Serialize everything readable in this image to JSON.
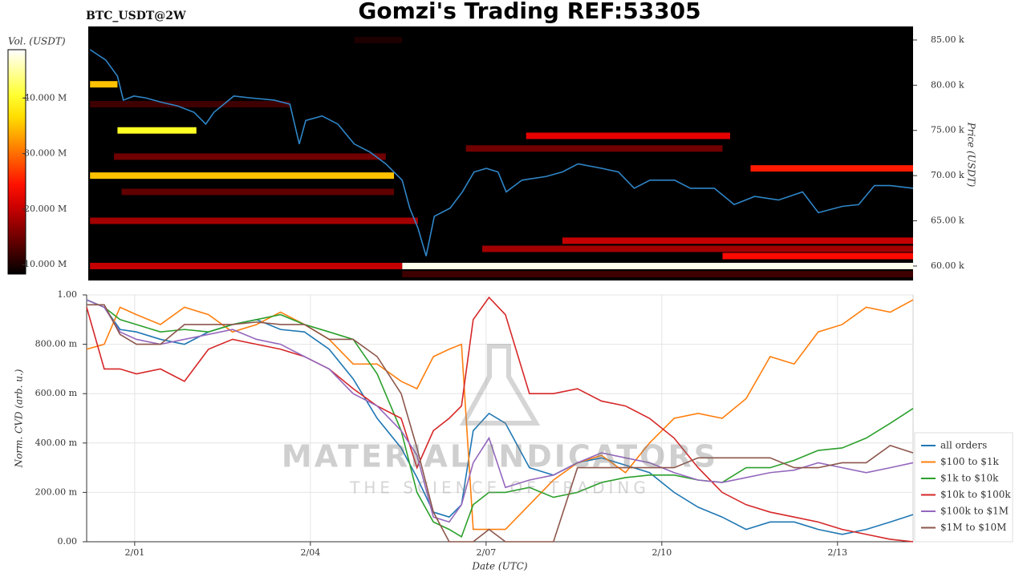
{
  "chart_data": [
    {
      "type": "heatmap",
      "title": "Gomzi's Trading REF:53305",
      "subtitle": "BTC_USDT@2W",
      "ylabel": "Price (USDT)",
      "xlim": [
        0.18,
        14.29
      ],
      "ylim": [
        58.4,
        86.5
      ],
      "yticks": [
        {
          "value": 60,
          "label": "60.00 k"
        },
        {
          "value": 65,
          "label": "65.00 k"
        },
        {
          "value": 70,
          "label": "70.00 k"
        },
        {
          "value": 75,
          "label": "75.00 k"
        },
        {
          "value": 80,
          "label": "80.00 k"
        },
        {
          "value": 85,
          "label": "85.00 k"
        }
      ],
      "x": [
        0.21,
        0.48,
        0.68,
        0.78,
        0.96,
        1.16,
        1.44,
        1.71,
        1.99,
        2.19,
        2.33,
        2.67,
        2.95,
        3.36,
        3.63,
        3.79,
        3.9,
        4.18,
        4.45,
        4.73,
        5.0,
        5.27,
        5.55,
        5.68,
        5.82,
        5.96,
        6.1,
        6.37,
        6.58,
        6.78,
        6.99,
        7.19,
        7.33,
        7.6,
        8.01,
        8.29,
        8.56,
        8.97,
        9.25,
        9.52,
        9.79,
        10.21,
        10.48,
        10.89,
        11.23,
        11.58,
        11.99,
        12.4,
        12.67,
        13.08,
        13.36,
        13.63,
        13.9,
        14.29
      ],
      "line": {
        "color": "#2f86c8",
        "values": [
          83.94,
          82.78,
          81.0,
          78.35,
          78.8,
          78.6,
          78.1,
          77.7,
          77.0,
          75.7,
          77.0,
          78.8,
          78.6,
          78.35,
          77.9,
          73.5,
          76.1,
          76.6,
          75.7,
          73.5,
          72.6,
          71.3,
          69.5,
          66.4,
          64.2,
          61.1,
          65.5,
          66.4,
          68.2,
          70.4,
          70.8,
          70.4,
          68.2,
          69.5,
          69.9,
          70.4,
          71.3,
          70.8,
          70.4,
          68.6,
          69.5,
          69.5,
          68.6,
          68.6,
          66.8,
          67.7,
          67.3,
          68.2,
          65.9,
          66.6,
          66.8,
          68.9,
          68.9,
          68.6
        ]
      },
      "bands": [
        {
          "price": 60.0,
          "from": 5.55,
          "to": 14.29,
          "volume": 48
        },
        {
          "price": 60.0,
          "from": 0.21,
          "to": 5.55,
          "volume": 20
        },
        {
          "price": 75.0,
          "from": 0.68,
          "to": 2.03,
          "volume": 40
        },
        {
          "price": 70.0,
          "from": 0.21,
          "to": 5.41,
          "volume": 35
        },
        {
          "price": 80.1,
          "from": 0.21,
          "to": 0.68,
          "volume": 35
        },
        {
          "price": 74.4,
          "from": 7.67,
          "to": 11.16,
          "volume": 22
        },
        {
          "price": 70.8,
          "from": 11.51,
          "to": 14.29,
          "volume": 25
        },
        {
          "price": 62.8,
          "from": 8.29,
          "to": 14.29,
          "volume": 20
        },
        {
          "price": 61.9,
          "from": 6.92,
          "to": 14.29,
          "volume": 18
        },
        {
          "price": 61.1,
          "from": 11.03,
          "to": 14.29,
          "volume": 24
        },
        {
          "price": 65.0,
          "from": 0.21,
          "to": 5.82,
          "volume": 18
        },
        {
          "price": 72.1,
          "from": 0.62,
          "to": 5.27,
          "volume": 15
        },
        {
          "price": 68.2,
          "from": 0.75,
          "to": 5.41,
          "volume": 14
        },
        {
          "price": 73.0,
          "from": 6.64,
          "to": 11.03,
          "volume": 15
        },
        {
          "price": 77.9,
          "from": 0.21,
          "to": 3.63,
          "volume": 12
        },
        {
          "price": 85.0,
          "from": 4.73,
          "to": 5.55,
          "volume": 10
        },
        {
          "price": 59.1,
          "from": 5.55,
          "to": 14.29,
          "volume": 12
        }
      ],
      "colorbar": {
        "label": "Vol. (USDT)",
        "lim": [
          8.3,
          48.7
        ],
        "ticks": [
          {
            "value": 10,
            "label": "10.000 M"
          },
          {
            "value": 20,
            "label": "20.000 M"
          },
          {
            "value": 30,
            "label": "30.000 M"
          },
          {
            "value": 40,
            "label": "40.000 M"
          }
        ]
      }
    },
    {
      "type": "line",
      "xlabel": "Date (UTC)",
      "ylabel": "Norm. CVD (arb. u.)",
      "grid": true,
      "legend": "right",
      "annotations": [
        "MATERIAL INDICATORS",
        "THE SCIENCE OF TRADING"
      ],
      "xlim": [
        0.18,
        14.29
      ],
      "ylim": [
        0,
        1
      ],
      "xticks": [
        {
          "value": 1,
          "label": "2/01"
        },
        {
          "value": 4,
          "label": "2/04"
        },
        {
          "value": 7,
          "label": "2/07"
        },
        {
          "value": 10,
          "label": "2/10"
        },
        {
          "value": 13,
          "label": "2/13"
        }
      ],
      "yticks": [
        {
          "value": 0,
          "label": "0.00"
        },
        {
          "value": 0.2,
          "label": "200.00 m"
        },
        {
          "value": 0.4,
          "label": "400.00 m"
        },
        {
          "value": 0.6,
          "label": "600.00 m"
        },
        {
          "value": 0.8,
          "label": "800.00 m"
        },
        {
          "value": 1,
          "label": "1.00"
        }
      ],
      "x": [
        0.18,
        0.48,
        0.75,
        1.03,
        1.44,
        1.85,
        2.26,
        2.67,
        3.08,
        3.49,
        3.9,
        4.32,
        4.73,
        5.14,
        5.55,
        5.82,
        6.1,
        6.37,
        6.58,
        6.78,
        7.05,
        7.33,
        7.74,
        8.15,
        8.56,
        8.97,
        9.38,
        9.79,
        10.21,
        10.62,
        11.03,
        11.44,
        11.85,
        12.26,
        12.67,
        13.08,
        13.49,
        13.9,
        14.29
      ],
      "series": [
        {
          "name": "all orders",
          "color": "#1f77b4",
          "values": [
            0.98,
            0.95,
            0.86,
            0.85,
            0.82,
            0.8,
            0.85,
            0.88,
            0.9,
            0.86,
            0.85,
            0.78,
            0.66,
            0.5,
            0.38,
            0.26,
            0.12,
            0.1,
            0.15,
            0.45,
            0.52,
            0.48,
            0.3,
            0.27,
            0.32,
            0.34,
            0.31,
            0.28,
            0.2,
            0.14,
            0.1,
            0.05,
            0.08,
            0.08,
            0.05,
            0.03,
            0.05,
            0.08,
            0.11
          ]
        },
        {
          "name": "$100 to $1k",
          "color": "#ff7f0e",
          "values": [
            0.78,
            0.8,
            0.95,
            0.92,
            0.88,
            0.95,
            0.92,
            0.85,
            0.88,
            0.93,
            0.88,
            0.82,
            0.72,
            0.72,
            0.65,
            0.62,
            0.75,
            0.78,
            0.8,
            0.05,
            0.05,
            0.05,
            0.15,
            0.25,
            0.32,
            0.35,
            0.28,
            0.4,
            0.5,
            0.52,
            0.5,
            0.58,
            0.75,
            0.72,
            0.85,
            0.88,
            0.95,
            0.93,
            0.98
          ]
        },
        {
          "name": "$1k to $10k",
          "color": "#2ca02c",
          "values": [
            0.98,
            0.95,
            0.9,
            0.88,
            0.85,
            0.86,
            0.85,
            0.88,
            0.9,
            0.92,
            0.88,
            0.85,
            0.82,
            0.68,
            0.45,
            0.2,
            0.08,
            0.05,
            0.02,
            0.15,
            0.2,
            0.2,
            0.22,
            0.18,
            0.2,
            0.24,
            0.26,
            0.27,
            0.27,
            0.25,
            0.24,
            0.3,
            0.3,
            0.33,
            0.37,
            0.38,
            0.42,
            0.48,
            0.54
          ]
        },
        {
          "name": "$10k to $100k",
          "color": "#d62728",
          "values": [
            0.95,
            0.7,
            0.7,
            0.68,
            0.7,
            0.65,
            0.78,
            0.82,
            0.8,
            0.78,
            0.75,
            0.7,
            0.62,
            0.55,
            0.5,
            0.3,
            0.45,
            0.5,
            0.55,
            0.9,
            0.99,
            0.92,
            0.6,
            0.6,
            0.62,
            0.57,
            0.55,
            0.5,
            0.42,
            0.3,
            0.2,
            0.15,
            0.12,
            0.1,
            0.08,
            0.05,
            0.03,
            0.01,
            0.0
          ]
        },
        {
          "name": "$100k to $1M",
          "color": "#9467bd",
          "values": [
            0.98,
            0.95,
            0.85,
            0.82,
            0.8,
            0.82,
            0.84,
            0.86,
            0.82,
            0.8,
            0.75,
            0.7,
            0.6,
            0.55,
            0.45,
            0.35,
            0.1,
            0.08,
            0.15,
            0.32,
            0.42,
            0.22,
            0.25,
            0.27,
            0.32,
            0.36,
            0.34,
            0.32,
            0.28,
            0.25,
            0.24,
            0.26,
            0.28,
            0.29,
            0.32,
            0.3,
            0.28,
            0.3,
            0.32
          ]
        },
        {
          "name": "$1M to $10M",
          "color": "#8c564b",
          "values": [
            0.96,
            0.96,
            0.84,
            0.8,
            0.8,
            0.88,
            0.88,
            0.88,
            0.89,
            0.88,
            0.88,
            0.82,
            0.82,
            0.75,
            0.6,
            0.38,
            0.12,
            0.0,
            0.0,
            0.0,
            0.05,
            0.0,
            0.0,
            0.0,
            0.3,
            0.3,
            0.3,
            0.3,
            0.3,
            0.34,
            0.34,
            0.34,
            0.34,
            0.3,
            0.3,
            0.32,
            0.32,
            0.39,
            0.36
          ]
        }
      ]
    }
  ]
}
